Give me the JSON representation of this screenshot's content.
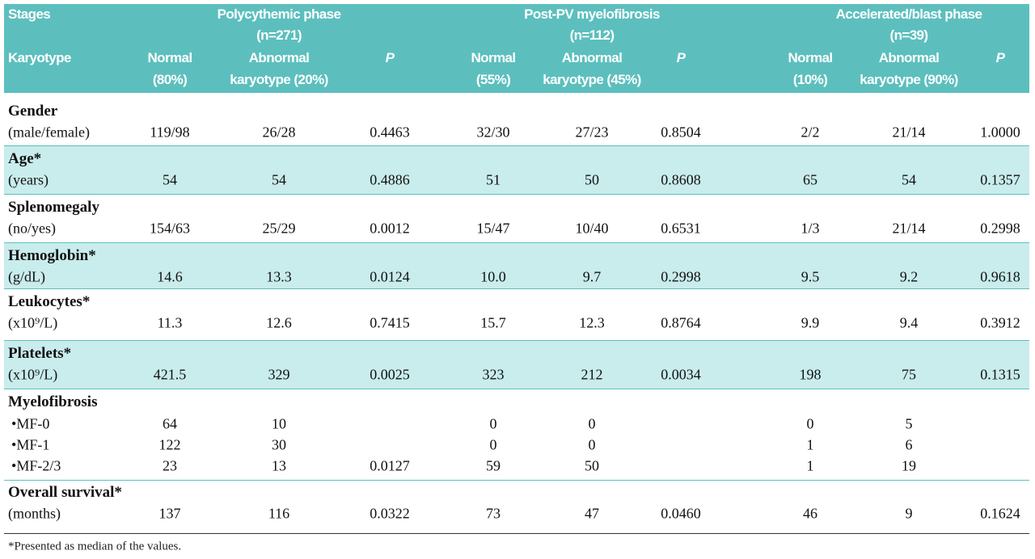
{
  "header": {
    "stages": "Stages",
    "karyotype": "Karyotype",
    "groups": [
      {
        "title": "Polycythemic phase",
        "n": "(n=271)",
        "columns": [
          [
            "Normal",
            "(80%)"
          ],
          [
            "Abnormal",
            "karyotype (20%)"
          ],
          [
            "P"
          ]
        ]
      },
      {
        "title": "Post-PV myelofibrosis",
        "n": "(n=112)",
        "columns": [
          [
            "Normal",
            "(55%)"
          ],
          [
            "Abnormal",
            "karyotype (45%)"
          ],
          [
            "P"
          ]
        ]
      },
      {
        "title": "Accelerated/blast phase",
        "n": "(n=39)",
        "columns": [
          [
            "Normal",
            "(10%)"
          ],
          [
            "Abnormal",
            "karyotype (90%)"
          ],
          [
            "P"
          ]
        ]
      }
    ]
  },
  "table": {
    "rows": [
      {
        "label": "Gender",
        "unit": "(male/female)",
        "values": [
          "119/98",
          "26/28",
          "0.4463",
          "32/30",
          "27/23",
          "0.8504",
          "2/2",
          "21/14",
          "1.0000"
        ]
      },
      {
        "label": "Age*",
        "unit": "(years)",
        "values": [
          "54",
          "54",
          "0.4886",
          "51",
          "50",
          "0.8608",
          "65",
          "54",
          "0.1357"
        ]
      },
      {
        "label": "Splenomegaly",
        "unit": "(no/yes)",
        "values": [
          "154/63",
          "25/29",
          "0.0012",
          "15/47",
          "10/40",
          "0.6531",
          "1/3",
          "21/14",
          "0.2998"
        ]
      },
      {
        "label": "Hemoglobin*",
        "unit": "(g/dL)",
        "values": [
          "14.6",
          "13.3",
          "0.0124",
          "10.0",
          "9.7",
          "0.2998",
          "9.5",
          "9.2",
          "0.9618"
        ]
      },
      {
        "label": "Leukocytes*",
        "unit": "(x10⁹/L)",
        "values": [
          "11.3",
          "12.6",
          "0.7415",
          "15.7",
          "12.3",
          "0.8764",
          "9.9",
          "9.4",
          "0.3912"
        ]
      },
      {
        "label": "Platelets*",
        "unit": "(x10⁹/L)",
        "values": [
          "421.5",
          "329",
          "0.0025",
          "323",
          "212",
          "0.0034",
          "198",
          "75",
          "0.1315"
        ]
      },
      {
        "label": "Myelofibrosis",
        "subrows": [
          {
            "label": "MF-0",
            "values": [
              "64",
              "10",
              null,
              "0",
              "0",
              null,
              "0",
              "5",
              null
            ]
          },
          {
            "label": "MF-1",
            "values": [
              "122",
              "30",
              null,
              "0",
              "0",
              null,
              "1",
              "6",
              null
            ]
          },
          {
            "label": "MF-2/3",
            "values": [
              "23",
              "13",
              "0.0127",
              "59",
              "50",
              null,
              "1",
              "19",
              null
            ]
          }
        ]
      },
      {
        "label": "Overall survival*",
        "unit": "(months)",
        "values": [
          "137",
          "116",
          "0.0322",
          "73",
          "47",
          "0.0460",
          "46",
          "9",
          "0.1624"
        ]
      }
    ]
  },
  "footnote": "*Presented as median of the values."
}
